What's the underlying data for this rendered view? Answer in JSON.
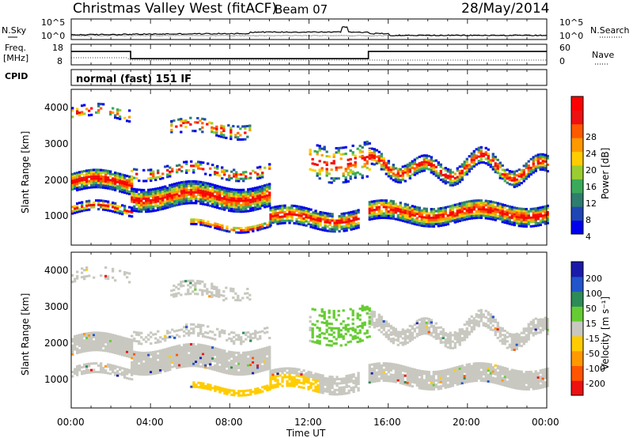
{
  "header": {
    "station": "Christmas Valley West (fitACF)",
    "beam": "Beam 07",
    "date": "28/May/2014"
  },
  "noise_panel": {
    "left_label": "N.Sky",
    "right_label": "N.Search",
    "left_ticks": [
      "10^5",
      "10^0"
    ],
    "right_ticks": [
      "10^5",
      "10^0"
    ]
  },
  "freq_panel": {
    "left_label_1": "Freq.",
    "left_label_2": "[MHz]",
    "left_ticks": [
      "18",
      "8"
    ],
    "right_label": "Nave",
    "right_ticks": [
      "60",
      "0"
    ]
  },
  "cpid_panel": {
    "label": "CPID",
    "mode": "normal (fast) 151 IF"
  },
  "power_panel": {
    "ylabel": "Slant Range [km]",
    "yticks": [
      "4000",
      "3000",
      "2000",
      "1000"
    ],
    "colorbar_label": "Power [dB]",
    "colorbar_ticks": [
      "28",
      "24",
      "20",
      "16",
      "12",
      "8",
      "4"
    ],
    "colors": [
      "#0000ee",
      "#1e46b4",
      "#2e7d6e",
      "#3aaa5a",
      "#9acd32",
      "#ffcc00",
      "#ff9900",
      "#ff5a00",
      "#ee1111",
      "#ff0000"
    ]
  },
  "velocity_panel": {
    "ylabel": "Slant Range [km]",
    "yticks": [
      "4000",
      "3000",
      "2000",
      "1000"
    ],
    "colorbar_label": "Velocity [m s⁻¹]",
    "colorbar_ticks": [
      "200",
      "100",
      "50",
      "15",
      "-15",
      "-50",
      "-100",
      "-200"
    ],
    "colors": [
      "#1a1aaa",
      "#2255cc",
      "#2e8b57",
      "#66cc33",
      "#c8c8c0",
      "#ffcc00",
      "#ff9900",
      "#ff5500",
      "#ee1111"
    ]
  },
  "xaxis": {
    "label": "Time UT",
    "ticks": [
      "00:00",
      "04:00",
      "08:00",
      "12:00",
      "16:00",
      "20:00",
      "00:00"
    ]
  },
  "chart_data": [
    {
      "type": "line",
      "title": "N.Sky / N.Search",
      "x_range_hours": [
        0,
        24
      ],
      "ylim": [
        "10^0",
        "10^5"
      ]
    },
    {
      "type": "line",
      "title": "Freq. / Nave",
      "x": [
        0,
        3.0,
        3.0,
        15.0,
        15.0,
        24
      ],
      "freq_mhz": [
        14.5,
        14.5,
        11.0,
        11.0,
        14.5,
        14.5
      ],
      "freq_ylim": [
        8,
        18
      ],
      "nave_ylim": [
        0,
        60
      ]
    },
    {
      "type": "heatmap",
      "title": "Power",
      "xlim_hours": [
        0,
        24
      ],
      "ylim_km": [
        180,
        4500
      ],
      "zlim_db": [
        0,
        30
      ]
    },
    {
      "type": "heatmap",
      "title": "Velocity",
      "xlim_hours": [
        0,
        24
      ],
      "ylim_km": [
        180,
        4500
      ],
      "zlim_ms": [
        -250,
        250
      ]
    }
  ]
}
